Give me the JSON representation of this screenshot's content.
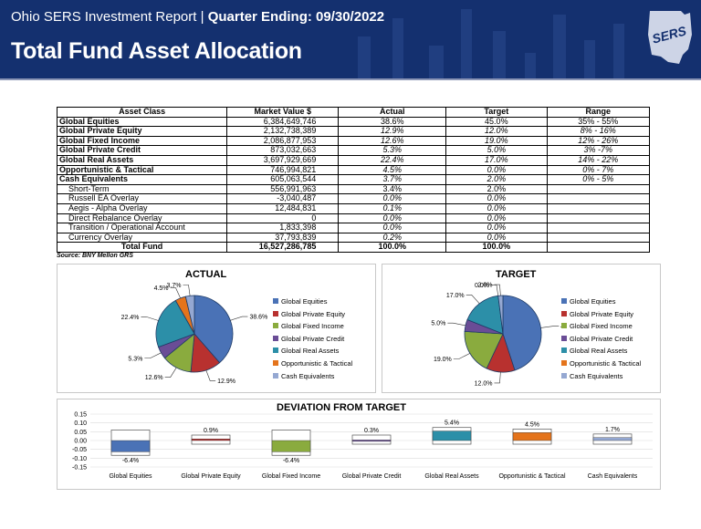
{
  "header": {
    "report": "Ohio SERS Investment Report",
    "separator": "|",
    "quarter": "Quarter Ending: 09/30/2022",
    "title": "Total Fund Asset Allocation",
    "logo_text": "SERS"
  },
  "table": {
    "columns": [
      "Asset Class",
      "Market Value  $",
      "Actual",
      "Target",
      "Range"
    ],
    "rows": [
      {
        "name": "Global Equities",
        "value": "6,384,649,746",
        "actual": "38.6%",
        "target": "45.0%",
        "range": "35% - 55%",
        "type": "main",
        "italic": false
      },
      {
        "name": "Global Private Equity",
        "value": "2,132,738,389",
        "actual": "12.9%",
        "target": "12.0%",
        "range": "8% - 16%",
        "type": "main",
        "italic": true
      },
      {
        "name": "Global Fixed Income",
        "value": "2,086,877,953",
        "actual": "12.6%",
        "target": "19.0%",
        "range": "12% - 26%",
        "type": "main",
        "italic": true
      },
      {
        "name": "Global Private Credit",
        "value": "873,032,663",
        "actual": "5.3%",
        "target": "5.0%",
        "range": "3% -7%",
        "type": "main",
        "italic": true
      },
      {
        "name": "Global Real Assets",
        "value": "3,697,929,669",
        "actual": "22.4%",
        "target": "17.0%",
        "range": "14% - 22%",
        "type": "main",
        "italic": true
      },
      {
        "name": "Opportunistic & Tactical",
        "value": "746,994,821",
        "actual": "4.5%",
        "target": "0.0%",
        "range": "0% - 7%",
        "type": "main",
        "italic": true
      },
      {
        "name": "Cash Equivalents",
        "value": "605,063,544",
        "actual": "3.7%",
        "target": "2.0%",
        "range": "0% - 5%",
        "type": "main",
        "italic": true
      },
      {
        "name": "Short-Term",
        "value": "556,991,963",
        "actual": "3.4%",
        "target": "2.0%",
        "range": "",
        "type": "sub",
        "italic": false
      },
      {
        "name": "Russell EA Overlay",
        "value": "-3,040,487",
        "actual": "0.0%",
        "target": "0.0%",
        "range": "",
        "type": "sub",
        "italic": true
      },
      {
        "name": "Aegis - Alpha Overlay",
        "value": "12,484,831",
        "actual": "0.1%",
        "target": "0.0%",
        "range": "",
        "type": "sub",
        "italic": true
      },
      {
        "name": "Direct Rebalance Overlay",
        "value": "0",
        "actual": "0.0%",
        "target": "0.0%",
        "range": "",
        "type": "sub",
        "italic": true
      },
      {
        "name": "Transition / Operational Account",
        "value": "1,833,398",
        "actual": "0.0%",
        "target": "0.0%",
        "range": "",
        "type": "sub",
        "italic": true
      },
      {
        "name": "Currency Overlay",
        "value": "37,793,839",
        "actual": "0.2%",
        "target": "0.0%",
        "range": "",
        "type": "sub",
        "italic": true
      },
      {
        "name": "Total Fund",
        "value": "16,527,286,785",
        "actual": "100.0%",
        "target": "100.0%",
        "range": "",
        "type": "total",
        "italic": false
      }
    ]
  },
  "source": "Source: BNY Mellon GRS",
  "colors": {
    "Global Equities": "#4a72b6",
    "Global Private Equity": "#b8312f",
    "Global Fixed Income": "#8aab3e",
    "Global Private Credit": "#6a4d96",
    "Global Real Assets": "#2c8fa8",
    "Opportunistic & Tactical": "#e4741c",
    "Cash Equivalents": "#95a8d2"
  },
  "chart_data": [
    {
      "type": "pie",
      "title": "ACTUAL",
      "categories": [
        "Global Equities",
        "Global Private Equity",
        "Global Fixed Income",
        "Global Private Credit",
        "Global Real Assets",
        "Opportunistic & Tactical",
        "Cash Equivalents"
      ],
      "values": [
        38.6,
        12.9,
        12.6,
        5.3,
        22.4,
        4.5,
        3.7
      ],
      "labels": [
        "38.6%",
        "12.9%",
        "12.6%",
        "5.3%",
        "22.4%",
        "4.5%",
        "3.7%"
      ],
      "legend": "right"
    },
    {
      "type": "pie",
      "title": "TARGET",
      "categories": [
        "Global Equities",
        "Global Private Equity",
        "Global Fixed Income",
        "Global Private Credit",
        "Global Real Assets",
        "Opportunistic & Tactical",
        "Cash Equivalents"
      ],
      "values": [
        45.0,
        12.0,
        19.0,
        5.0,
        17.0,
        0.0,
        2.0
      ],
      "labels": [
        "45.0%",
        "12.0%",
        "19.0%",
        "5.0%",
        "17.0%",
        "0.0%",
        "2.0%"
      ],
      "legend": "right"
    },
    {
      "type": "bar",
      "title": "DEVIATION FROM TARGET",
      "categories": [
        "Global Equities",
        "Global Private Equity",
        "Global Fixed Income",
        "Global Private Credit",
        "Global Real Assets",
        "Opportunistic & Tactical",
        "Cash Equivalents"
      ],
      "values": [
        -0.064,
        0.009,
        -0.064,
        0.003,
        0.054,
        0.045,
        0.017
      ],
      "labels": [
        "-6.4%",
        "0.9%",
        "-6.4%",
        "0.3%",
        "5.4%",
        "4.5%",
        "1.7%"
      ],
      "ylim": [
        -0.15,
        0.15
      ],
      "yticks": [
        "0.15",
        "0.10",
        "0.05",
        "0.00",
        "-0.05",
        "-0.10",
        "-0.15"
      ],
      "grid": true
    }
  ]
}
